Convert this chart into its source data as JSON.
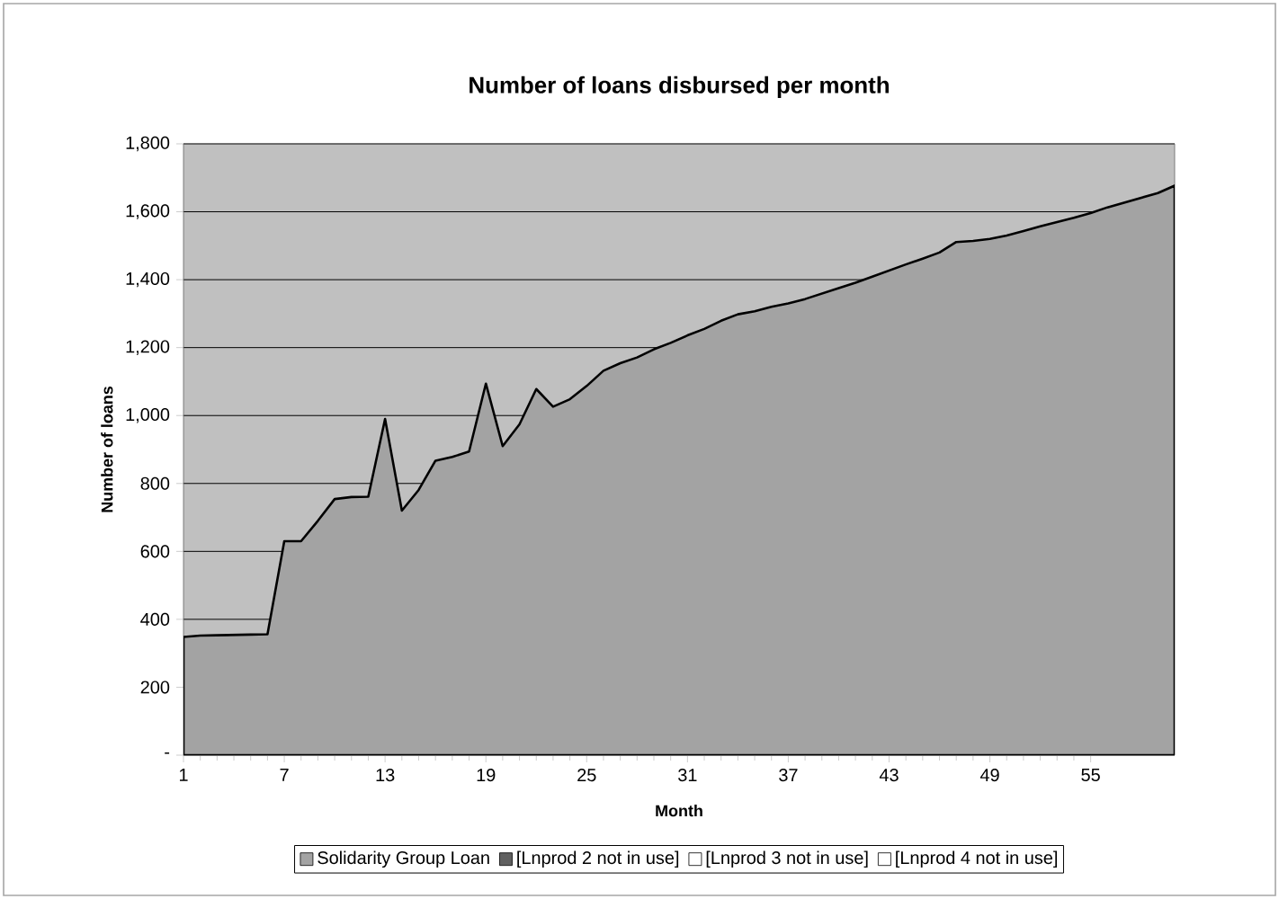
{
  "chart_data": {
    "type": "area",
    "title": "Number of loans disbursed per month",
    "xlabel": "Month",
    "ylabel": "Number of loans",
    "x": [
      1,
      2,
      3,
      4,
      5,
      6,
      7,
      8,
      9,
      10,
      11,
      12,
      13,
      14,
      15,
      16,
      17,
      18,
      19,
      20,
      21,
      22,
      23,
      24,
      25,
      26,
      27,
      28,
      29,
      30,
      31,
      32,
      33,
      34,
      35,
      36,
      37,
      38,
      39,
      40,
      41,
      42,
      43,
      44,
      45,
      46,
      47,
      48,
      49,
      50,
      51,
      52,
      53,
      54,
      55,
      56,
      57,
      58,
      59,
      60
    ],
    "series": [
      {
        "name": "Solidarity Group Loan",
        "color": "#a3a3a3",
        "values": [
          348,
          352,
          353,
          354,
          355,
          356,
          630,
          630,
          690,
          754,
          760,
          761,
          990,
          720,
          781,
          867,
          878,
          894,
          1094,
          910,
          974,
          1078,
          1026,
          1048,
          1087,
          1132,
          1154,
          1171,
          1195,
          1214,
          1236,
          1255,
          1279,
          1298,
          1307,
          1320,
          1330,
          1343,
          1359,
          1375,
          1391,
          1409,
          1427,
          1445,
          1462,
          1480,
          1511,
          1514,
          1520,
          1530,
          1543,
          1557,
          1570,
          1582,
          1596,
          1613,
          1627,
          1641,
          1655,
          1677
        ]
      },
      {
        "name": "[Lnprod 2 not in use]",
        "color": "#606060",
        "values": [
          null,
          null,
          null,
          null,
          null,
          null,
          null,
          null,
          null,
          null,
          null,
          null,
          null,
          null,
          null,
          null,
          null,
          null,
          null,
          null,
          null,
          null,
          null,
          null,
          null,
          null,
          null,
          null,
          null,
          null,
          null,
          null,
          null,
          null,
          null,
          null,
          null,
          null,
          null,
          null,
          null,
          null,
          null,
          null,
          null,
          null,
          null,
          null,
          null,
          null,
          null,
          null,
          null,
          null,
          null,
          null,
          null,
          null,
          null,
          null
        ]
      },
      {
        "name": "[Lnprod 3 not in use]",
        "color": "#ffffff",
        "values": [
          null,
          null,
          null,
          null,
          null,
          null,
          null,
          null,
          null,
          null,
          null,
          null,
          null,
          null,
          null,
          null,
          null,
          null,
          null,
          null,
          null,
          null,
          null,
          null,
          null,
          null,
          null,
          null,
          null,
          null,
          null,
          null,
          null,
          null,
          null,
          null,
          null,
          null,
          null,
          null,
          null,
          null,
          null,
          null,
          null,
          null,
          null,
          null,
          null,
          null,
          null,
          null,
          null,
          null,
          null,
          null,
          null,
          null,
          null,
          null
        ]
      },
      {
        "name": "[Lnprod 4 not in use]",
        "color": "#ffffff",
        "values": [
          null,
          null,
          null,
          null,
          null,
          null,
          null,
          null,
          null,
          null,
          null,
          null,
          null,
          null,
          null,
          null,
          null,
          null,
          null,
          null,
          null,
          null,
          null,
          null,
          null,
          null,
          null,
          null,
          null,
          null,
          null,
          null,
          null,
          null,
          null,
          null,
          null,
          null,
          null,
          null,
          null,
          null,
          null,
          null,
          null,
          null,
          null,
          null,
          null,
          null,
          null,
          null,
          null,
          null,
          null,
          null,
          null,
          null,
          null,
          null
        ]
      }
    ],
    "xlim": [
      1,
      60
    ],
    "xticks": [
      1,
      7,
      13,
      19,
      25,
      31,
      37,
      43,
      49,
      55
    ],
    "ylim": [
      0,
      1800
    ],
    "yticks": [
      {
        "value": 0,
        "label": "-"
      },
      {
        "value": 200,
        "label": "200"
      },
      {
        "value": 400,
        "label": "400"
      },
      {
        "value": 600,
        "label": "600"
      },
      {
        "value": 800,
        "label": "800"
      },
      {
        "value": 1000,
        "label": "1,000"
      },
      {
        "value": 1200,
        "label": "1,200"
      },
      {
        "value": 1400,
        "label": "1,400"
      },
      {
        "value": 1600,
        "label": "1,600"
      },
      {
        "value": 1800,
        "label": "1,800"
      }
    ],
    "grid": "y",
    "legend": "bottom"
  }
}
